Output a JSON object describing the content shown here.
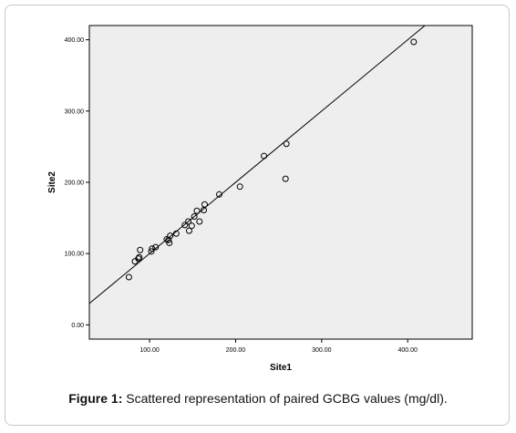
{
  "chart_data": {
    "type": "scatter",
    "xlabel": "Site1",
    "ylabel": "Site2",
    "xlim": [
      30,
      475
    ],
    "ylim": [
      -20,
      420
    ],
    "x_ticks": [
      100,
      200,
      300,
      400
    ],
    "x_tick_labels": [
      "100.00",
      "200.00",
      "300.00",
      "400.00"
    ],
    "y_ticks": [
      0,
      100,
      200,
      300,
      400
    ],
    "y_tick_labels": [
      "0.00",
      "100.00",
      "200.00",
      "300.00",
      "400.00"
    ],
    "grid": false,
    "reference_line": "y = x",
    "background_color": "#eeeeee",
    "points": [
      {
        "x": 76,
        "y": 67
      },
      {
        "x": 83,
        "y": 89
      },
      {
        "x": 87,
        "y": 93
      },
      {
        "x": 88,
        "y": 95
      },
      {
        "x": 89,
        "y": 105
      },
      {
        "x": 102,
        "y": 103
      },
      {
        "x": 103,
        "y": 107
      },
      {
        "x": 107,
        "y": 109
      },
      {
        "x": 120,
        "y": 120
      },
      {
        "x": 122,
        "y": 119
      },
      {
        "x": 123,
        "y": 115
      },
      {
        "x": 124,
        "y": 125
      },
      {
        "x": 131,
        "y": 128
      },
      {
        "x": 141,
        "y": 140
      },
      {
        "x": 145,
        "y": 145
      },
      {
        "x": 146,
        "y": 132
      },
      {
        "x": 149,
        "y": 139
      },
      {
        "x": 152,
        "y": 152
      },
      {
        "x": 155,
        "y": 160
      },
      {
        "x": 158,
        "y": 145
      },
      {
        "x": 163,
        "y": 161
      },
      {
        "x": 164,
        "y": 169
      },
      {
        "x": 181,
        "y": 183
      },
      {
        "x": 205,
        "y": 194
      },
      {
        "x": 233,
        "y": 237
      },
      {
        "x": 258,
        "y": 205
      },
      {
        "x": 259,
        "y": 254
      },
      {
        "x": 407,
        "y": 397
      }
    ]
  },
  "caption": {
    "label": "Figure 1:",
    "text": " Scattered representation of paired GCBG values (mg/dl)."
  }
}
